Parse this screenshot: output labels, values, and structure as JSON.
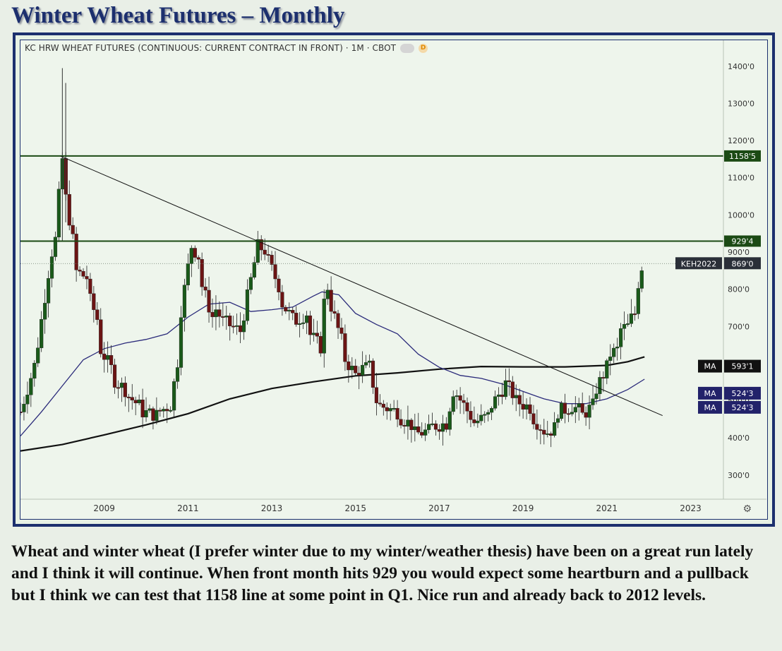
{
  "title": "Winter Wheat Futures – Monthly",
  "commentary": "Wheat and winter wheat (I prefer winter due to my winter/weather thesis) have been on a great run lately and I think it will continue. When front month hits 929 you would expect some heartburn and a pullback but I think we can test that 1158 line at some point in Q1. Nice run and already back to 2012 levels.",
  "chart_header": {
    "symbol_text": "KC HRW WHEAT FUTURES (CONTINUOUS: CURRENT CONTRACT IN FRONT) · 1M · CBOT",
    "badge_icon": "delayed-data-icon",
    "badge_letter": "D"
  },
  "settings_icon": "gear-icon",
  "chart_data": {
    "type": "candlestick",
    "y_ticks": [
      "300'0",
      "400'0",
      "500'0",
      "600'0",
      "700'0",
      "800'0",
      "900'0",
      "1000'0",
      "1100'0",
      "1200'0",
      "1300'0",
      "1400'0"
    ],
    "y_tick_values": [
      300,
      400,
      500,
      600,
      700,
      800,
      900,
      1000,
      1100,
      1200,
      1300,
      1400
    ],
    "ylim": [
      235,
      1470
    ],
    "x_ticks": [
      "2009",
      "2011",
      "2013",
      "2015",
      "2017",
      "2019",
      "2021",
      "2023"
    ],
    "x_tick_values": [
      2009,
      2011,
      2013,
      2015,
      2017,
      2019,
      2021,
      2023
    ],
    "xlim": [
      2007.0,
      2023.75
    ],
    "horizontal_lines": [
      {
        "value": 1158.6,
        "label": "1158'5",
        "color": "#1b4a14"
      },
      {
        "value": 929.5,
        "label": "929'4",
        "color": "#1b4a14"
      }
    ],
    "last_price": {
      "value": 869,
      "label": "KEH2022",
      "price_label": "869'0"
    },
    "trendline": {
      "from": {
        "x": 2007.96,
        "y": 1158
      },
      "to": {
        "x": 2022.33,
        "y": 460
      }
    },
    "moving_averages": [
      {
        "label": "MA",
        "value_label": "593'1",
        "value": 593,
        "color": "#111111"
      },
      {
        "label": "MA",
        "value_label": "524'3",
        "value": 524,
        "color": "#2a2a7a"
      },
      {
        "label": "MA",
        "value_label": "524'3",
        "value": 524,
        "color": "#2a2a7a"
      }
    ],
    "ma_long_path": [
      [
        2007.0,
        365
      ],
      [
        2008,
        382
      ],
      [
        2009,
        408
      ],
      [
        2010,
        435
      ],
      [
        2011,
        465
      ],
      [
        2012,
        505
      ],
      [
        2013,
        533
      ],
      [
        2014,
        551
      ],
      [
        2015,
        567
      ],
      [
        2016,
        575
      ],
      [
        2017,
        585
      ],
      [
        2018,
        592
      ],
      [
        2019,
        591
      ],
      [
        2020,
        591
      ],
      [
        2021,
        595
      ],
      [
        2021.5,
        605
      ],
      [
        2021.9,
        618
      ]
    ],
    "ma_short_path": [
      [
        2007.0,
        405
      ],
      [
        2007.5,
        470
      ],
      [
        2008,
        540
      ],
      [
        2008.5,
        610
      ],
      [
        2009,
        640
      ],
      [
        2009.5,
        655
      ],
      [
        2010,
        665
      ],
      [
        2010.5,
        680
      ],
      [
        2011,
        725
      ],
      [
        2011.5,
        760
      ],
      [
        2012,
        765
      ],
      [
        2012.5,
        740
      ],
      [
        2013,
        745
      ],
      [
        2013.5,
        752
      ],
      [
        2014,
        782
      ],
      [
        2014.2,
        793
      ],
      [
        2014.6,
        785
      ],
      [
        2015,
        735
      ],
      [
        2015.5,
        705
      ],
      [
        2016,
        680
      ],
      [
        2016.5,
        625
      ],
      [
        2017,
        590
      ],
      [
        2017.5,
        568
      ],
      [
        2018,
        560
      ],
      [
        2018.5,
        545
      ],
      [
        2019,
        525
      ],
      [
        2019.5,
        505
      ],
      [
        2020,
        492
      ],
      [
        2020.5,
        492
      ],
      [
        2021,
        505
      ],
      [
        2021.5,
        530
      ],
      [
        2021.9,
        558
      ]
    ],
    "ohlc_anchors": [
      [
        2007.0,
        470,
        470
      ],
      [
        2007.4,
        620,
        640
      ],
      [
        2007.7,
        870,
        880
      ],
      [
        2007.9,
        960,
        1030
      ],
      [
        2008.0,
        1150,
        1100
      ],
      [
        2008.3,
        900,
        850
      ],
      [
        2008.6,
        830,
        790
      ],
      [
        2008.9,
        700,
        640
      ],
      [
        2009.2,
        580,
        560
      ],
      [
        2009.5,
        530,
        520
      ],
      [
        2009.9,
        480,
        470
      ],
      [
        2010.3,
        460,
        470
      ],
      [
        2010.6,
        490,
        500
      ],
      [
        2010.8,
        640,
        720
      ],
      [
        2011.0,
        860,
        930
      ],
      [
        2011.3,
        880,
        820
      ],
      [
        2011.6,
        720,
        760
      ],
      [
        2011.9,
        700,
        710
      ],
      [
        2012.2,
        690,
        660
      ],
      [
        2012.6,
        880,
        920
      ],
      [
        2012.9,
        900,
        880
      ],
      [
        2013.2,
        800,
        770
      ],
      [
        2013.5,
        720,
        710
      ],
      [
        2013.9,
        740,
        680
      ],
      [
        2014.2,
        640,
        740
      ],
      [
        2014.4,
        840,
        760
      ],
      [
        2014.7,
        650,
        620
      ],
      [
        2015.0,
        570,
        580
      ],
      [
        2015.3,
        590,
        610
      ],
      [
        2015.5,
        500,
        490
      ],
      [
        2016.0,
        470,
        460
      ],
      [
        2016.4,
        430,
        410
      ],
      [
        2016.8,
        420,
        430
      ],
      [
        2017.2,
        440,
        460
      ],
      [
        2017.4,
        560,
        520
      ],
      [
        2017.8,
        450,
        440
      ],
      [
        2018.2,
        460,
        480
      ],
      [
        2018.5,
        530,
        560
      ],
      [
        2018.8,
        510,
        500
      ],
      [
        2019.2,
        480,
        460
      ],
      [
        2019.5,
        420,
        410
      ],
      [
        2019.8,
        430,
        470
      ],
      [
        2020.1,
        480,
        490
      ],
      [
        2020.4,
        470,
        460
      ],
      [
        2020.7,
        490,
        520
      ],
      [
        2021.0,
        590,
        620
      ],
      [
        2021.3,
        640,
        690
      ],
      [
        2021.5,
        700,
        710
      ],
      [
        2021.7,
        740,
        790
      ],
      [
        2021.85,
        869,
        869
      ]
    ]
  }
}
